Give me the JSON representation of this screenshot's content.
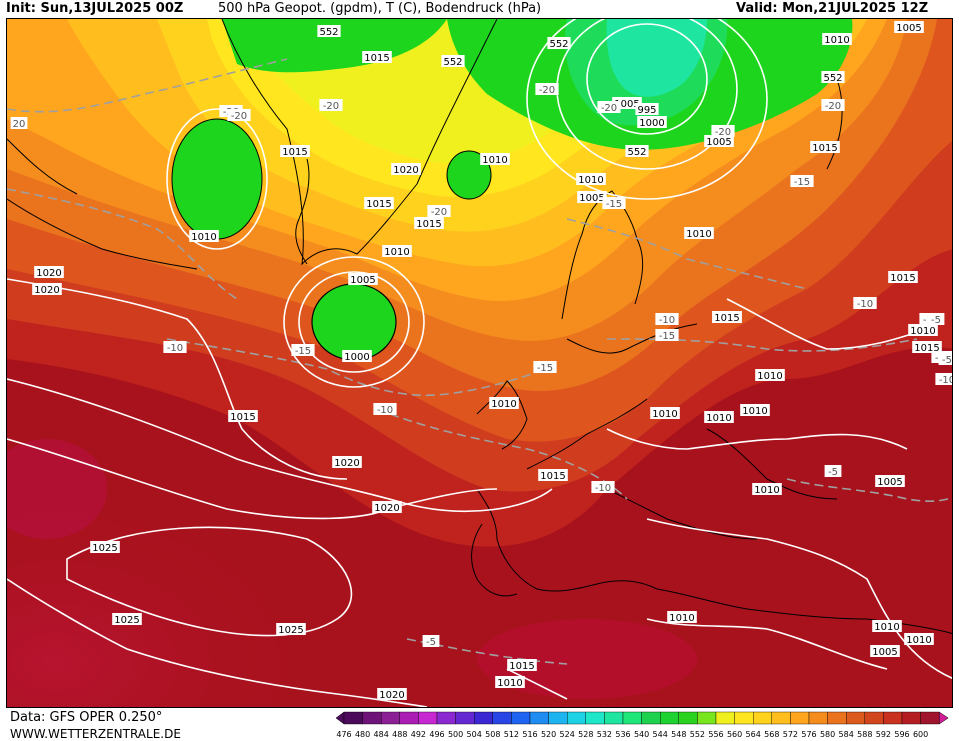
{
  "header": {
    "init": "Init: Sun,13JUL2025 00Z",
    "title": "500 hPa Geopot. (gpdm), T (C), Bodendruck (hPa)",
    "valid": "Valid: Mon,21JUL2025 12Z"
  },
  "footer": {
    "data_source": "Data: GFS OPER 0.250°",
    "url": "WWW.WETTERZENTRALE.DE"
  },
  "colors": {
    "geopot_low": "#1ed51e",
    "geopot_mid": "#ffd21e",
    "geopot_high": "#aa1020",
    "isobar": "#ffffff",
    "isotherm": "#a0a0a0",
    "coast": "#000000"
  },
  "scale": {
    "values": [
      "476",
      "480",
      "484",
      "488",
      "492",
      "496",
      "500",
      "504",
      "508",
      "512",
      "516",
      "520",
      "524",
      "528",
      "532",
      "536",
      "540",
      "544",
      "548",
      "552",
      "556",
      "560",
      "564",
      "568",
      "572",
      "576",
      "580",
      "584",
      "588",
      "592",
      "596",
      "600"
    ],
    "colors": [
      "#4b0a5a",
      "#6e1478",
      "#8c1e96",
      "#aa1eb4",
      "#c828d2",
      "#8c28d2",
      "#6428d2",
      "#3c28d2",
      "#2846e6",
      "#1e64f0",
      "#1e8cf0",
      "#1eb4f0",
      "#1ed2e6",
      "#1ee6c8",
      "#1ee6a0",
      "#1ee678",
      "#1ed250",
      "#1ed232",
      "#28d21e",
      "#78e61e",
      "#f0f01e",
      "#ffe61e",
      "#ffd21e",
      "#ffbe1e",
      "#ffa51e",
      "#f58c1e",
      "#eb731e",
      "#dc5a1e",
      "#d2461e",
      "#c8321e",
      "#b41e23",
      "#a0142d",
      "#d21e96"
    ]
  },
  "labels": {
    "pressure": [
      "1005",
      "1010",
      "552",
      "1015",
      "552",
      "552",
      "1010",
      "552",
      "1020",
      "1010",
      "1015",
      "1010",
      "1015",
      "1015",
      "1005",
      "1010",
      "1005",
      "1010",
      "1005",
      "552",
      "1000",
      "1020",
      "1010",
      "1005",
      "995",
      "1000",
      "1015",
      "1015",
      "1010",
      "1010",
      "1010",
      "1010",
      "1010",
      "1010",
      "1015",
      "1020",
      "1025",
      "1015",
      "1025",
      "1020",
      "1010",
      "1015",
      "1010",
      "1005",
      "1010",
      "1005",
      "1010",
      "1015",
      "1010",
      "1020",
      "1025",
      "1020",
      "1015"
    ],
    "temperature": [
      "-20",
      "-20",
      "-20",
      "-20",
      "-20",
      "-20",
      "20",
      "-20",
      "-20",
      "-15",
      "-15",
      "-15",
      "-15",
      "-10",
      "-10",
      "-10",
      "-10",
      "-10",
      "-10",
      "-10",
      "-15",
      "-5",
      "-5",
      "-5",
      "-5",
      "-10",
      "-10"
    ],
    "geopot": [
      "552",
      "552",
      "552",
      "552",
      "552",
      "552",
      "552"
    ]
  }
}
